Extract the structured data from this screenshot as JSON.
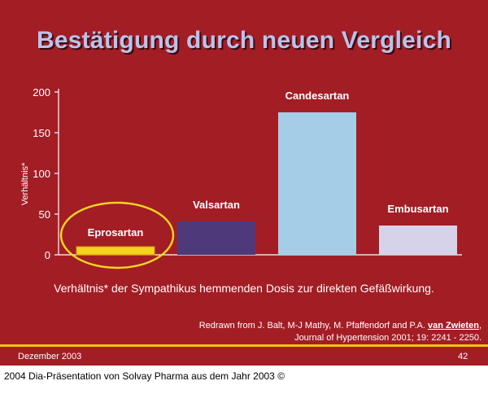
{
  "title": "Bestätigung durch neuen Vergleich",
  "chart_data": {
    "type": "bar",
    "ylabel": "Verhältnis*",
    "ylim": [
      0,
      200
    ],
    "yticks": [
      0,
      50,
      100,
      150,
      200
    ],
    "categories": [
      "Eprosartan",
      "Valsartan",
      "Candesartan",
      "Embusartan"
    ],
    "values": [
      10,
      41,
      175,
      36
    ],
    "colors": [
      "#f7d21d",
      "#4e3a7a",
      "#a6cde8",
      "#d6d2ea"
    ],
    "highlight": "Eprosartan",
    "highlight_color": "#f4d51f"
  },
  "caption": "Verhältnis* der Sympathikus hemmenden Dosis zur direkten Gefäßwirkung.",
  "citation": {
    "prefix": "Redrawn from J. Balt, M-J Mathy, M. Pfaffendorf and P.A. ",
    "author": "van Zwieten",
    "suffix": ",",
    "line2": "Journal of Hypertension 2001; 19: 2241 - 2250."
  },
  "footer": {
    "date": "Dezember 2003",
    "page": "42"
  },
  "copyright": "2004 Dia-Präsentation von Solvay Pharma aus dem Jahr 2003 ©",
  "colors": {
    "background": "#a31d25",
    "title": "#b9c3ea",
    "accent": "#f2c21a"
  }
}
